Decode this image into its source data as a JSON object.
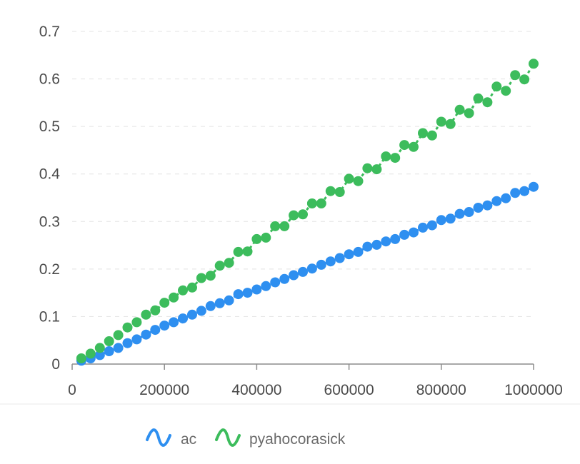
{
  "chart_data": {
    "type": "line",
    "title": "",
    "xlabel": "",
    "ylabel": "",
    "xlim": [
      0,
      1000000
    ],
    "ylim": [
      0,
      0.7
    ],
    "x_ticks": [
      0,
      200000,
      400000,
      600000,
      800000,
      1000000
    ],
    "x_tick_labels": [
      "0",
      "200000",
      "400000",
      "600000",
      "800000",
      "1000000"
    ],
    "y_ticks": [
      0,
      0.1,
      0.2,
      0.3,
      0.4,
      0.5,
      0.6,
      0.7
    ],
    "y_tick_labels": [
      "0",
      "0.1",
      "0.2",
      "0.3",
      "0.4",
      "0.5",
      "0.6",
      "0.7"
    ],
    "grid": "horizontal-dashed",
    "legend_position": "bottom",
    "x": [
      20000,
      40000,
      60000,
      80000,
      100000,
      120000,
      140000,
      160000,
      180000,
      200000,
      220000,
      240000,
      260000,
      280000,
      300000,
      320000,
      340000,
      360000,
      380000,
      400000,
      420000,
      440000,
      460000,
      480000,
      500000,
      520000,
      540000,
      560000,
      580000,
      600000,
      620000,
      640000,
      660000,
      680000,
      700000,
      720000,
      740000,
      760000,
      780000,
      800000,
      820000,
      840000,
      860000,
      880000,
      900000,
      920000,
      940000,
      960000,
      980000,
      1000000
    ],
    "series": [
      {
        "name": "ac",
        "color": "#2e8ff0",
        "values": [
          0.007,
          0.012,
          0.019,
          0.027,
          0.034,
          0.044,
          0.052,
          0.062,
          0.072,
          0.081,
          0.088,
          0.096,
          0.104,
          0.112,
          0.122,
          0.128,
          0.134,
          0.147,
          0.15,
          0.157,
          0.164,
          0.172,
          0.179,
          0.187,
          0.194,
          0.201,
          0.209,
          0.216,
          0.223,
          0.231,
          0.236,
          0.247,
          0.251,
          0.258,
          0.263,
          0.272,
          0.277,
          0.287,
          0.292,
          0.303,
          0.306,
          0.316,
          0.32,
          0.329,
          0.334,
          0.343,
          0.349,
          0.36,
          0.364,
          0.373
        ]
      },
      {
        "name": "pyahocorasick",
        "color": "#3cbc5c",
        "values": [
          0.012,
          0.022,
          0.034,
          0.048,
          0.061,
          0.077,
          0.088,
          0.104,
          0.113,
          0.129,
          0.14,
          0.155,
          0.161,
          0.181,
          0.186,
          0.207,
          0.213,
          0.236,
          0.237,
          0.263,
          0.266,
          0.29,
          0.29,
          0.313,
          0.315,
          0.338,
          0.338,
          0.364,
          0.362,
          0.39,
          0.385,
          0.412,
          0.41,
          0.437,
          0.434,
          0.461,
          0.457,
          0.486,
          0.481,
          0.51,
          0.505,
          0.535,
          0.528,
          0.559,
          0.551,
          0.584,
          0.575,
          0.608,
          0.599,
          0.632
        ]
      }
    ]
  }
}
